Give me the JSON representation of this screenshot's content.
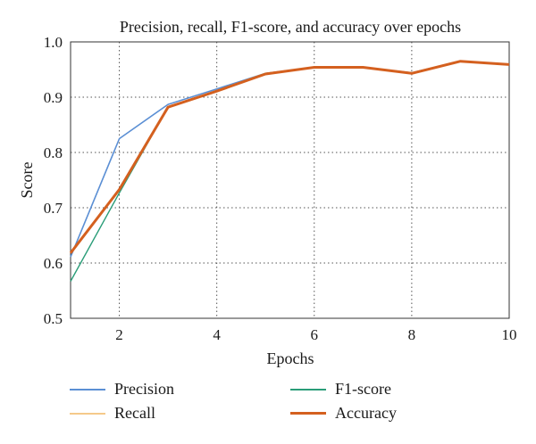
{
  "chart_data": {
    "type": "line",
    "title": "Precision, recall, F1-score, and accuracy over epochs",
    "xlabel": "Epochs",
    "ylabel": "Score",
    "xlim": [
      1,
      10
    ],
    "ylim": [
      0.5,
      1.0
    ],
    "xticks": [
      2,
      4,
      6,
      8,
      10
    ],
    "yticks": [
      0.5,
      0.6,
      0.7,
      0.8,
      0.9,
      1.0
    ],
    "ytick_labels": [
      "0.5",
      "0.6",
      "0.7",
      "0.8",
      "0.9",
      "1.0"
    ],
    "grid": true,
    "legend_position": "bottom",
    "x": [
      1,
      2,
      3,
      4,
      5,
      6,
      7,
      8,
      9,
      10
    ],
    "series": [
      {
        "name": "Precision",
        "color": "#5b8fd4",
        "width": 1.6,
        "values": [
          0.611,
          0.825,
          0.887,
          0.915,
          0.943,
          0.954,
          0.954,
          0.944,
          0.965,
          0.959
        ]
      },
      {
        "name": "Recall",
        "color": "#f5c98a",
        "width": 1.6,
        "values": [
          0.618,
          0.733,
          0.882,
          0.912,
          0.943,
          0.954,
          0.954,
          0.944,
          0.965,
          0.959
        ]
      },
      {
        "name": "F1-score",
        "color": "#2a9d78",
        "width": 1.4,
        "values": [
          0.567,
          0.727,
          0.882,
          0.912,
          0.943,
          0.954,
          0.954,
          0.944,
          0.965,
          0.959
        ]
      },
      {
        "name": "Accuracy",
        "color": "#d4601f",
        "width": 3.0,
        "values": [
          0.618,
          0.733,
          0.882,
          0.911,
          0.942,
          0.954,
          0.954,
          0.943,
          0.965,
          0.959
        ]
      }
    ]
  }
}
